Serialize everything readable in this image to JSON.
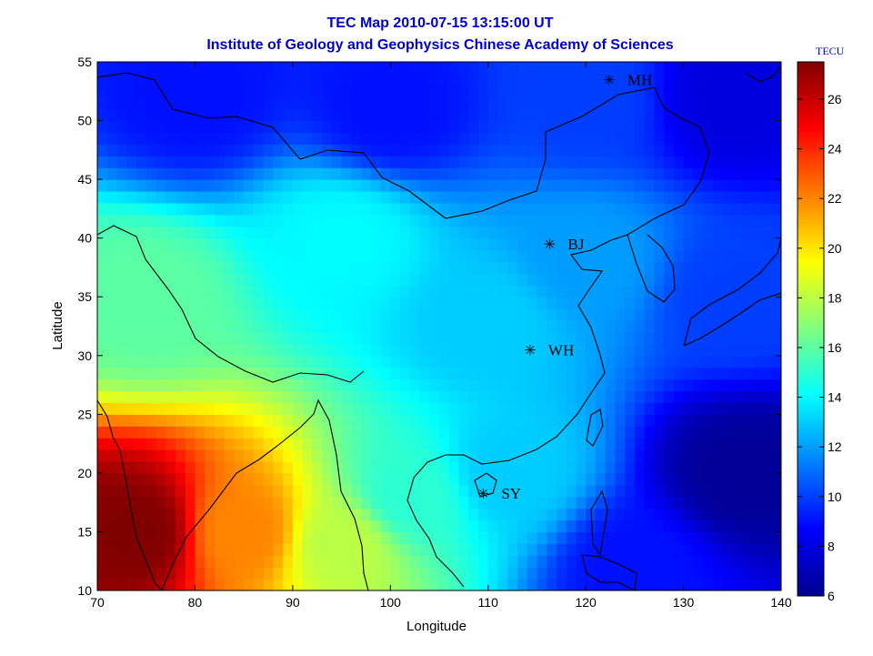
{
  "chart_data": {
    "type": "heatmap",
    "title": "TEC Map 2010-07-15 13:15:00 UT",
    "subtitle": "Institute of Geology and Geophysics Chinese Academy of Sciences",
    "xlabel": "Longitude",
    "ylabel": "Latitude",
    "xlim": [
      70,
      140
    ],
    "ylim": [
      10,
      55
    ],
    "xticks": [
      "70",
      "80",
      "90",
      "100",
      "110",
      "120",
      "130",
      "140"
    ],
    "yticks": [
      "10",
      "15",
      "20",
      "25",
      "30",
      "35",
      "40",
      "45",
      "50",
      "55"
    ],
    "colorbar": {
      "unit": "TECU",
      "range": [
        6,
        27.5
      ],
      "ticks": [
        "6",
        "8",
        "10",
        "12",
        "14",
        "16",
        "18",
        "20",
        "22",
        "24",
        "26"
      ],
      "colormap": "jet"
    },
    "stations": [
      {
        "label": "MH",
        "lon": 122.4,
        "lat": 53.5
      },
      {
        "label": "BJ",
        "lon": 116.3,
        "lat": 39.5
      },
      {
        "label": "WH",
        "lon": 114.3,
        "lat": 30.5
      },
      {
        "label": "SY",
        "lon": 109.5,
        "lat": 18.3
      }
    ],
    "field_samples": [
      {
        "lon": 74,
        "lat": 15,
        "tec": 27.5
      },
      {
        "lon": 85,
        "lat": 15,
        "tec": 22
      },
      {
        "lon": 95,
        "lat": 14,
        "tec": 18
      },
      {
        "lon": 102,
        "lat": 18,
        "tec": 15
      },
      {
        "lon": 112,
        "lat": 20,
        "tec": 13
      },
      {
        "lon": 75,
        "lat": 35,
        "tec": 16
      },
      {
        "lon": 95,
        "lat": 40,
        "tec": 14
      },
      {
        "lon": 110,
        "lat": 33,
        "tec": 13
      },
      {
        "lon": 120,
        "lat": 38,
        "tec": 12
      },
      {
        "lon": 80,
        "lat": 52,
        "tec": 9
      },
      {
        "lon": 100,
        "lat": 51,
        "tec": 9
      },
      {
        "lon": 120,
        "lat": 52,
        "tec": 10
      },
      {
        "lon": 135,
        "lat": 52,
        "tec": 8
      },
      {
        "lon": 135,
        "lat": 35,
        "tec": 10
      },
      {
        "lon": 136,
        "lat": 20,
        "tec": 6.5
      },
      {
        "lon": 125,
        "lat": 12,
        "tec": 9
      }
    ]
  }
}
